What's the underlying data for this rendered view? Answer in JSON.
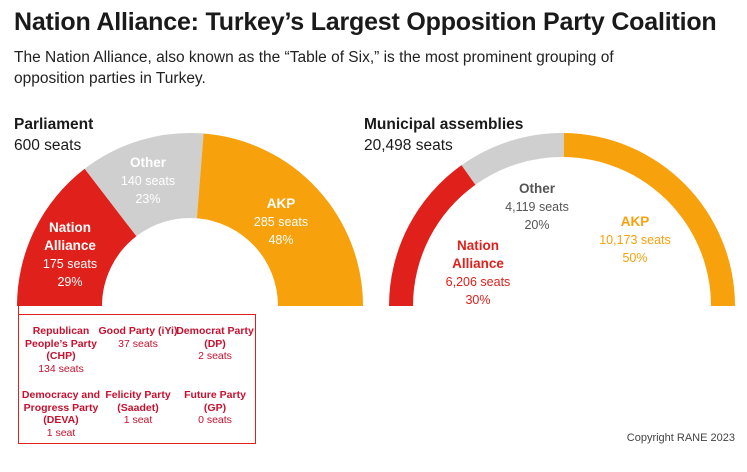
{
  "title": "Nation Alliance: Turkey’s Largest Opposition Party Coalition",
  "subtitle": "The Nation Alliance, also known as the “Table of Six,” is the most prominent grouping of opposition parties in Turkey.",
  "copyright": "Copyright RANE 2023",
  "colors": {
    "nation_alliance": "#e0201b",
    "other": "#cfcfcf",
    "akp": "#f7a10c"
  },
  "chart_data": [
    {
      "type": "pie",
      "variant": "semicircle-donut",
      "title": "Parliament",
      "subtitle": "600 seats",
      "total": 600,
      "slices": [
        {
          "label": "Nation Alliance",
          "seats_text": "175 seats",
          "pct_text": "29%",
          "value": 175,
          "percent": 29
        },
        {
          "label": "Other",
          "seats_text": "140 seats",
          "pct_text": "23%",
          "value": 140,
          "percent": 23
        },
        {
          "label": "AKP",
          "seats_text": "285 seats",
          "pct_text": "48%",
          "value": 285,
          "percent": 48
        }
      ]
    },
    {
      "type": "pie",
      "variant": "semicircle-donut",
      "title": "Municipal assemblies",
      "subtitle": "20,498 seats",
      "total": 20498,
      "slices": [
        {
          "label": "Nation Alliance",
          "seats_text": "6,206 seats",
          "pct_text": "30%",
          "value": 6206,
          "percent": 30
        },
        {
          "label": "Other",
          "seats_text": "4,119 seats",
          "pct_text": "20%",
          "value": 4119,
          "percent": 20
        },
        {
          "label": "AKP",
          "seats_text": "10,173 seats",
          "pct_text": "50%",
          "value": 10173,
          "percent": 50
        }
      ]
    }
  ],
  "nation_alliance_breakdown": [
    {
      "name": "Republican People’s Party (CHP)",
      "seats_text": "134 seats",
      "value": 134
    },
    {
      "name": "Good Party (iYi)",
      "seats_text": "37 seats",
      "value": 37
    },
    {
      "name": "Democrat Party (DP)",
      "seats_text": "2 seats",
      "value": 2
    },
    {
      "name": "Democracy and Progress Party (DEVA)",
      "seats_text": "1 seat",
      "value": 1
    },
    {
      "name": "Felicity Party (Saadet)",
      "seats_text": "1 seat",
      "value": 1
    },
    {
      "name": "Future Party (GP)",
      "seats_text": "0 seats",
      "value": 0
    }
  ]
}
